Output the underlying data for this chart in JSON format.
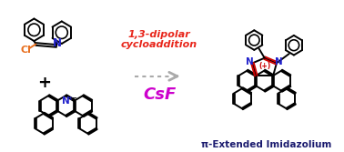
{
  "background_color": "#ffffff",
  "reaction_label_line1": "1,3-dipolar",
  "reaction_label_line2": "cycloaddition",
  "reaction_label_color": "#e8251a",
  "csf_label": "CsF",
  "csf_color": "#cc00cc",
  "arrow_color": "#aaaaaa",
  "bottom_label": "π-Extended Imidazolium",
  "bottom_label_color": "#1a1a6e",
  "cl_color": "#e87020",
  "n_color": "#2222cc",
  "plus_color": "#cc0000",
  "red_bond_color": "#cc0000",
  "figsize": [
    3.78,
    1.67
  ],
  "dpi": 100
}
